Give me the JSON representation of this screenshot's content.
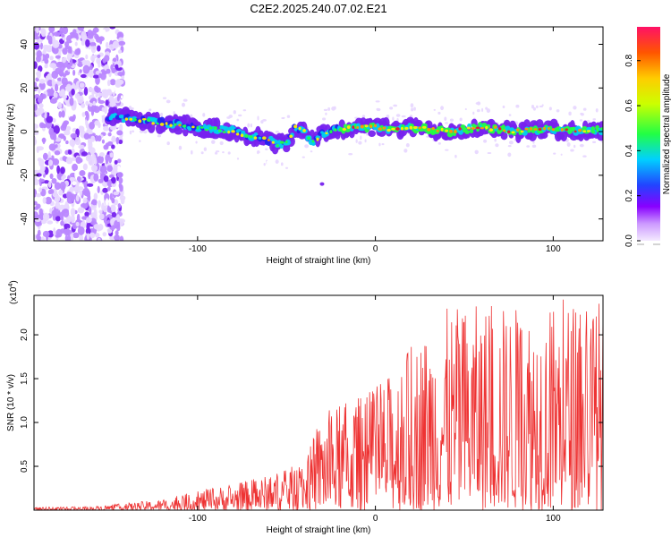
{
  "title": "C2E2.2025.240.07.02.E21",
  "chart_data": [
    {
      "type": "heatmap",
      "xlabel": "Height of straight line (km)",
      "ylabel": "Frequency (Hz)",
      "xlim": [
        -192,
        128
      ],
      "ylim": [
        -50,
        48
      ],
      "xticks": [
        -100,
        0,
        100
      ],
      "xtick_labels": [
        "-100",
        "0",
        "100"
      ],
      "yticks": [
        -40,
        -20,
        0,
        20,
        40
      ],
      "ytick_labels": [
        "-40",
        "-20",
        "0",
        "20",
        "40"
      ],
      "colorbar": {
        "label": "Normalized spectral amplitude",
        "range": [
          0,
          0.95
        ],
        "ticks": [
          0.0,
          0.2,
          0.4,
          0.6,
          0.8
        ],
        "tick_labels": [
          "0.0",
          "0.2",
          "0.4",
          "0.6",
          "0.8"
        ]
      },
      "ridge": {
        "x": [
          -150,
          -140,
          -130,
          -120,
          -110,
          -100,
          -90,
          -80,
          -70,
          -60,
          -55,
          -50,
          -45,
          -40,
          -35,
          -30,
          -20,
          -10,
          0,
          10,
          20,
          30,
          40,
          50,
          60,
          70,
          80,
          90,
          100,
          110,
          120,
          128
        ],
        "y": [
          7,
          6,
          5,
          4,
          3,
          2,
          1,
          0,
          -2,
          -4,
          -6,
          -5,
          2,
          0,
          -5,
          -1,
          1,
          2,
          2,
          1,
          2,
          1,
          0,
          1,
          2,
          1,
          0,
          1,
          1,
          0,
          0,
          1
        ]
      },
      "isolated_blob": {
        "x": -30,
        "y": -24
      }
    },
    {
      "type": "line",
      "xlabel": "Height of straight line (km)",
      "ylabel": "SNR (10 * v/v)",
      "scale_label": "(x10^4)",
      "scale_base": "(x10",
      "scale_exp": "4",
      "scale_close": ")",
      "xlim": [
        -192,
        128
      ],
      "ylim": [
        0,
        2.45
      ],
      "xticks": [
        -100,
        0,
        100
      ],
      "xtick_labels": [
        "-100",
        "0",
        "100"
      ],
      "yticks": [
        0.5,
        1.0,
        1.5,
        2.0
      ],
      "ytick_labels": [
        "0.5",
        "1.0",
        "1.5",
        "2.0"
      ],
      "series": [
        {
          "name": "SNR",
          "color": "#ee3333",
          "envelope_x": [
            -192,
            -160,
            -140,
            -120,
            -100,
            -80,
            -60,
            -40,
            -30,
            -20,
            -10,
            0,
            10,
            20,
            30,
            40,
            60,
            80,
            100,
            128
          ],
          "envelope_max": [
            0.03,
            0.04,
            0.08,
            0.12,
            0.22,
            0.3,
            0.4,
            0.55,
            1.1,
            1.2,
            1.3,
            1.4,
            1.6,
            1.9,
            2.1,
            2.3,
            2.35,
            2.35,
            2.4,
            2.45
          ]
        }
      ]
    }
  ],
  "colors": {
    "heatmap_ramp": [
      "#ffffff",
      "#e8d8ff",
      "#bb88ff",
      "#7722ee",
      "#2222ee",
      "#00d0ee",
      "#22ff44",
      "#ffee00",
      "#ff9900",
      "#ee1133"
    ],
    "line": "#ee3333"
  }
}
